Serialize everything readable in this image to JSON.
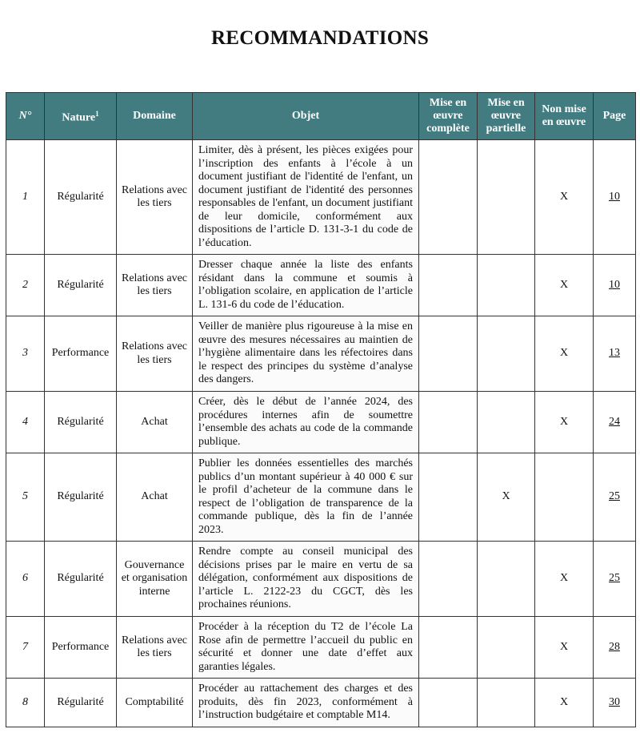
{
  "title": "RECOMMANDATIONS",
  "headers": {
    "num": "N°",
    "nature": "Nature",
    "nature_sup": "1",
    "domaine": "Domaine",
    "objet": "Objet",
    "complete": "Mise en œuvre complète",
    "partielle": "Mise en œuvre partielle",
    "non": "Non mise en œuvre",
    "page": "Page"
  },
  "rows": [
    {
      "num": "1",
      "nature": "Régularité",
      "domaine": "Relations avec les tiers",
      "objet": "Limiter, dès à présent, les pièces exigées pour l’inscription des enfants à l’école à un document justifiant de l'identité de l'enfant, un document justifiant de l'identité des personnes responsables de l'enfant, un document justifiant de leur domicile, conformément aux dispositions de l’article D. 131-3-1 du code de l’éducation.",
      "complete": "",
      "partielle": "",
      "non": "X",
      "page": "10"
    },
    {
      "num": "2",
      "nature": "Régularité",
      "domaine": "Relations avec les tiers",
      "objet": "Dresser chaque année la liste des enfants résidant dans la commune et soumis à l’obligation scolaire, en application de l’article L. 131-6 du code de l’éducation.",
      "complete": "",
      "partielle": "",
      "non": "X",
      "page": "10"
    },
    {
      "num": "3",
      "nature": "Performance",
      "domaine": "Relations avec les tiers",
      "objet": "Veiller de manière plus rigoureuse à la mise en œuvre des mesures nécessaires au maintien de l’hygiène alimentaire dans les réfectoires dans le respect des principes du système d’analyse des dangers.",
      "complete": "",
      "partielle": "",
      "non": "X",
      "page": "13"
    },
    {
      "num": "4",
      "nature": "Régularité",
      "domaine": "Achat",
      "objet": "Créer, dès le début de l’année 2024, des procédures internes afin de soumettre l’ensemble des achats au code de la commande publique.",
      "complete": "",
      "partielle": "",
      "non": "X",
      "page": "24"
    },
    {
      "num": "5",
      "nature": "Régularité",
      "domaine": "Achat",
      "objet": "Publier les données essentielles des marchés publics d’un montant supérieur à 40 000 € sur le profil d’acheteur de la commune dans le respect de l’obligation de transparence de la commande publique, dès la fin de l’année 2023.",
      "complete": "",
      "partielle": "X",
      "non": "",
      "page": "25"
    },
    {
      "num": "6",
      "nature": "Régularité",
      "domaine": "Gouvernance et organisation interne",
      "objet": "Rendre compte au conseil municipal des décisions prises par le maire en vertu de sa délégation, conformément aux dispositions de l’article L. 2122-23 du CGCT, dès les prochaines réunions.",
      "complete": "",
      "partielle": "",
      "non": "X",
      "page": "25"
    },
    {
      "num": "7",
      "nature": "Performance",
      "domaine": "Relations avec les tiers",
      "objet": "Procéder à la réception du T2 de l’école La Rose afin de permettre l’accueil du public en sécurité et donner une date d’effet aux garanties légales.",
      "complete": "",
      "partielle": "",
      "non": "X",
      "page": "28"
    },
    {
      "num": "8",
      "nature": "Régularité",
      "domaine": "Comptabilité",
      "objet": "Procéder au rattachement des charges et des produits, dès fin 2023, conformément à l’instruction budgétaire et comptable M14.",
      "complete": "",
      "partielle": "",
      "non": "X",
      "page": "30"
    }
  ]
}
